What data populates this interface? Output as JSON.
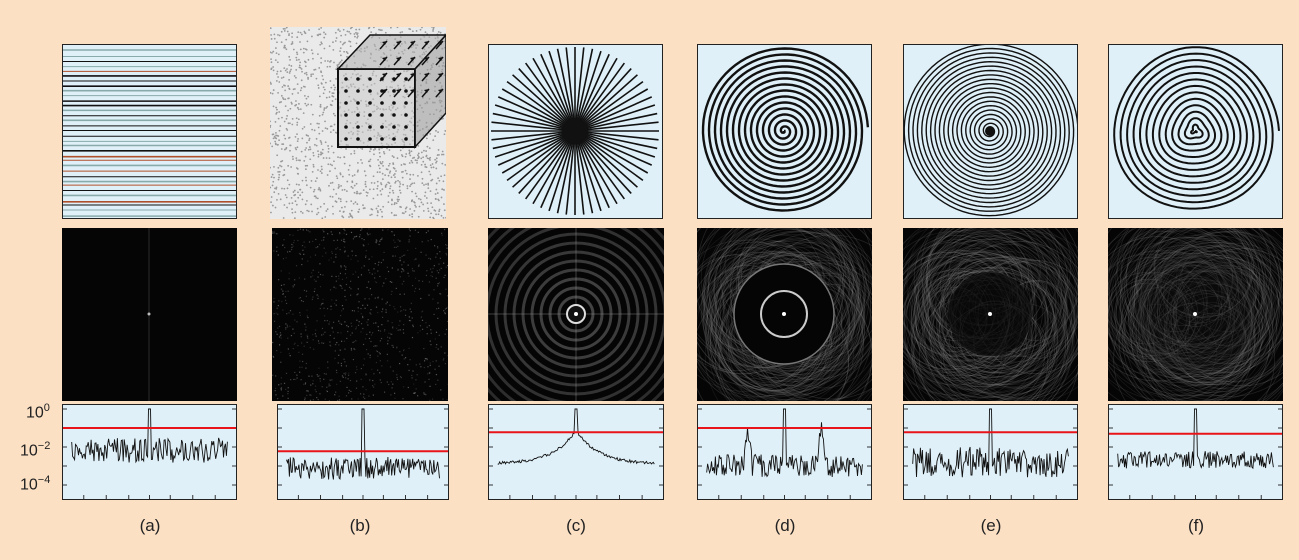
{
  "captions": [
    "(a)",
    "(b)",
    "(c)",
    "(d)",
    "(e)",
    "(f)"
  ],
  "y_axis": {
    "scale": "log",
    "ticks": [
      {
        "base": "10",
        "exp": "0"
      },
      {
        "base": "10",
        "exp": "−2"
      },
      {
        "base": "10",
        "exp": "−4"
      }
    ]
  },
  "colors": {
    "background": "#fbe0c4",
    "panel": "#dff0f8",
    "threshold": "#e8141a",
    "spectrum": "#111111"
  },
  "chart_data": [
    {
      "type": "line",
      "panel": "a",
      "description_series": "spectrum",
      "peak": 1,
      "threshold": 0.1,
      "ylim": [
        0.0001,
        1
      ]
    },
    {
      "type": "line",
      "panel": "b",
      "peak": 1,
      "threshold": 0.006,
      "ylim": [
        0.0001,
        1
      ]
    },
    {
      "type": "line",
      "panel": "c",
      "peak": 1,
      "threshold": 0.06,
      "ylim": [
        0.0001,
        1
      ]
    },
    {
      "type": "line",
      "panel": "d",
      "peak": 1,
      "threshold": 0.1,
      "ylim": [
        0.0001,
        1
      ]
    },
    {
      "type": "line",
      "panel": "e",
      "peak": 1,
      "threshold": 0.06,
      "ylim": [
        0.0001,
        1
      ]
    },
    {
      "type": "line",
      "panel": "f",
      "peak": 1,
      "threshold": 0.05,
      "ylim": [
        0.0001,
        1
      ]
    }
  ]
}
